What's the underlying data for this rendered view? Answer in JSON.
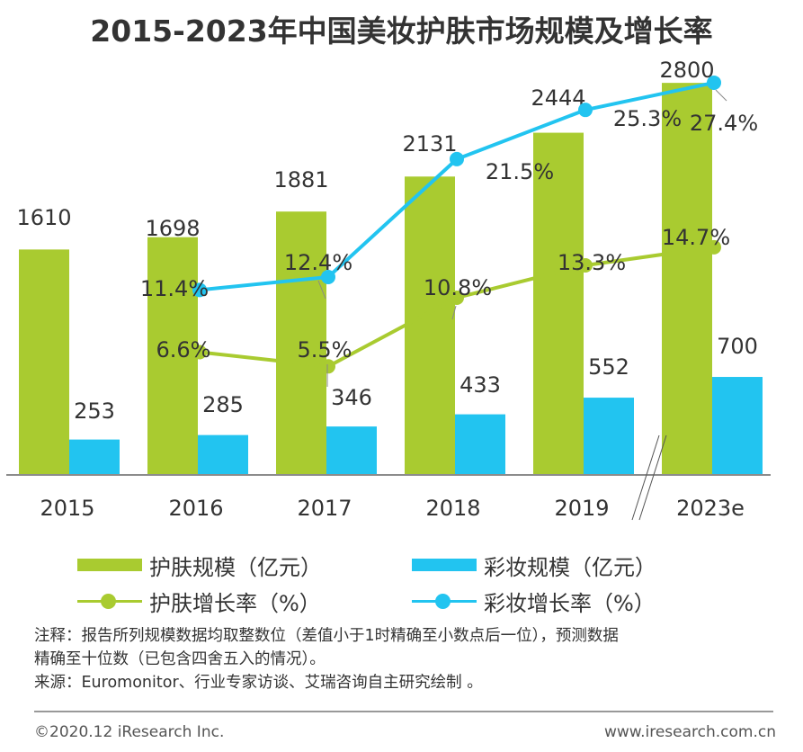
{
  "title": "2015-2023年中国美妆护肤市场规模及增长率",
  "chart_data": {
    "type": "bar",
    "title": "2015-2023年中国美妆护肤市场规模及增长率",
    "categories": [
      "2015",
      "2016",
      "2017",
      "2018",
      "2019",
      "2023e"
    ],
    "series": [
      {
        "name": "护肤规模（亿元）",
        "kind": "bar",
        "color": "#A9CB30",
        "values": [
          1610,
          1698,
          1881,
          2131,
          2444,
          2800
        ],
        "labels": [
          "1610",
          "1698",
          "1881",
          "2131",
          "2444",
          "2800"
        ]
      },
      {
        "name": "彩妆规模（亿元）",
        "kind": "bar",
        "color": "#22C4F0",
        "values": [
          253,
          285,
          346,
          433,
          552,
          700
        ],
        "labels": [
          "253",
          "285",
          "346",
          "433",
          "552",
          "700"
        ]
      },
      {
        "name": "护肤增长率（%）",
        "kind": "line",
        "color": "#A9CB30",
        "values": [
          null,
          6.6,
          5.5,
          10.8,
          13.3,
          14.7
        ],
        "labels": [
          "",
          "6.6%",
          "5.5%",
          "10.8%",
          "13.3%",
          "14.7%"
        ]
      },
      {
        "name": "彩妆增长率（%）",
        "kind": "line",
        "color": "#22C4F0",
        "values": [
          null,
          11.4,
          12.4,
          21.5,
          25.3,
          27.4
        ],
        "labels": [
          "",
          "11.4%",
          "12.4%",
          "21.5%",
          "25.3%",
          "27.4%"
        ]
      }
    ],
    "axis_break_between": [
      "2019",
      "2023e"
    ],
    "xlabel": "",
    "ylabel": "",
    "legend_position": "bottom"
  },
  "legend": {
    "skin_size": "护肤规模（亿元）",
    "makeup_size": "彩妆规模（亿元）",
    "skin_growth": "护肤增长率（%）",
    "makeup_growth": "彩妆增长率（%）"
  },
  "notes": {
    "line1": "注释：报告所列规模数据均取整数位（差值小于1时精确至小数点后一位），预测数据",
    "line2": "精确至十位数（已包含四舍五入的情况）。",
    "line3": "来源：Euromonitor、行业专家访谈、艾瑞咨询自主研究绘制 。"
  },
  "footer": {
    "copyright": "©2020.12 iResearch Inc.",
    "website": "www.iresearch.com.cn"
  },
  "colors": {
    "green": "#A9CB30",
    "blue": "#22C4F0"
  }
}
